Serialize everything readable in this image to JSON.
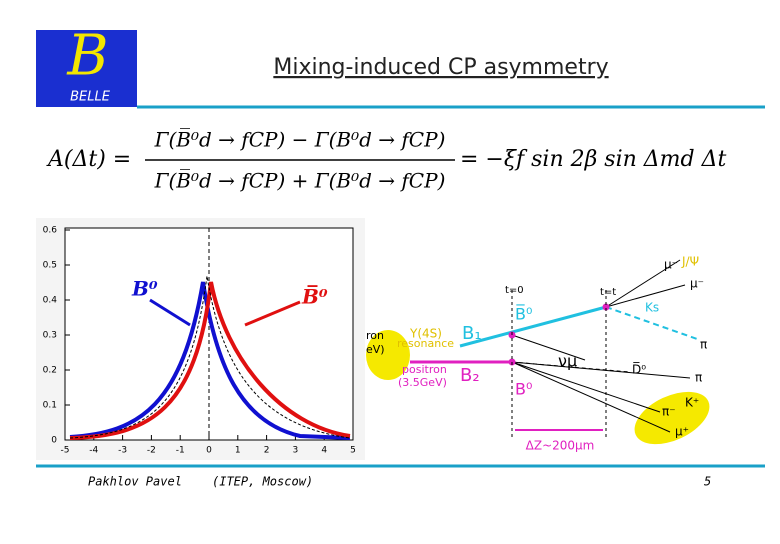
{
  "logo": {
    "letter": "B",
    "name": "BELLE"
  },
  "title": "Mixing-induced CP asymmetry",
  "formula": {
    "lhs": "A(Δt) =",
    "numerator": "Γ(B̅⁰d → fCP) − Γ(B⁰d → fCP)",
    "denominator": "Γ(B̅⁰d → fCP) + Γ(B⁰d → fCP)",
    "rhs": "= −ξf sin 2β sin Δmd Δt"
  },
  "plot": {
    "yticks": [
      "0",
      "0.1",
      "0.2",
      "0.3",
      "0.4",
      "0.5",
      "0.6"
    ],
    "xticks": [
      "-5",
      "-4",
      "-3",
      "-2",
      "-1",
      "0",
      "1",
      "2",
      "3",
      "4",
      "5"
    ],
    "b0_label": "B⁰",
    "b0bar_label": "B̅⁰"
  },
  "diagram": {
    "jpsi": "J/Ψ",
    "mu_minus_1": "μ⁻",
    "mu_minus_2": "μ⁻",
    "t0": "t=0",
    "tt": "t=t",
    "b0_top": "B̅⁰",
    "ks": "Ks",
    "upsilon": "Υ(4S)",
    "resonance": "resonance",
    "electron_a": "ron",
    "electron_b": "eV)",
    "b1": "B₁",
    "nu": "νμ",
    "positron": "positron",
    "positron_energy": "(3.5GeV)",
    "b2": "B₂",
    "b0_bottom": "B⁰",
    "d0bar": "D̅⁰",
    "pi_1": "π",
    "pi_2": "π",
    "kplus": "K⁺",
    "piminus": "π⁻",
    "muplus": "μ⁺",
    "deltaz": "ΔZ~200μm"
  },
  "footer": {
    "author": "Pakhlov Pavel",
    "affiliation": "(ITEP, Moscow)",
    "page": "5"
  }
}
